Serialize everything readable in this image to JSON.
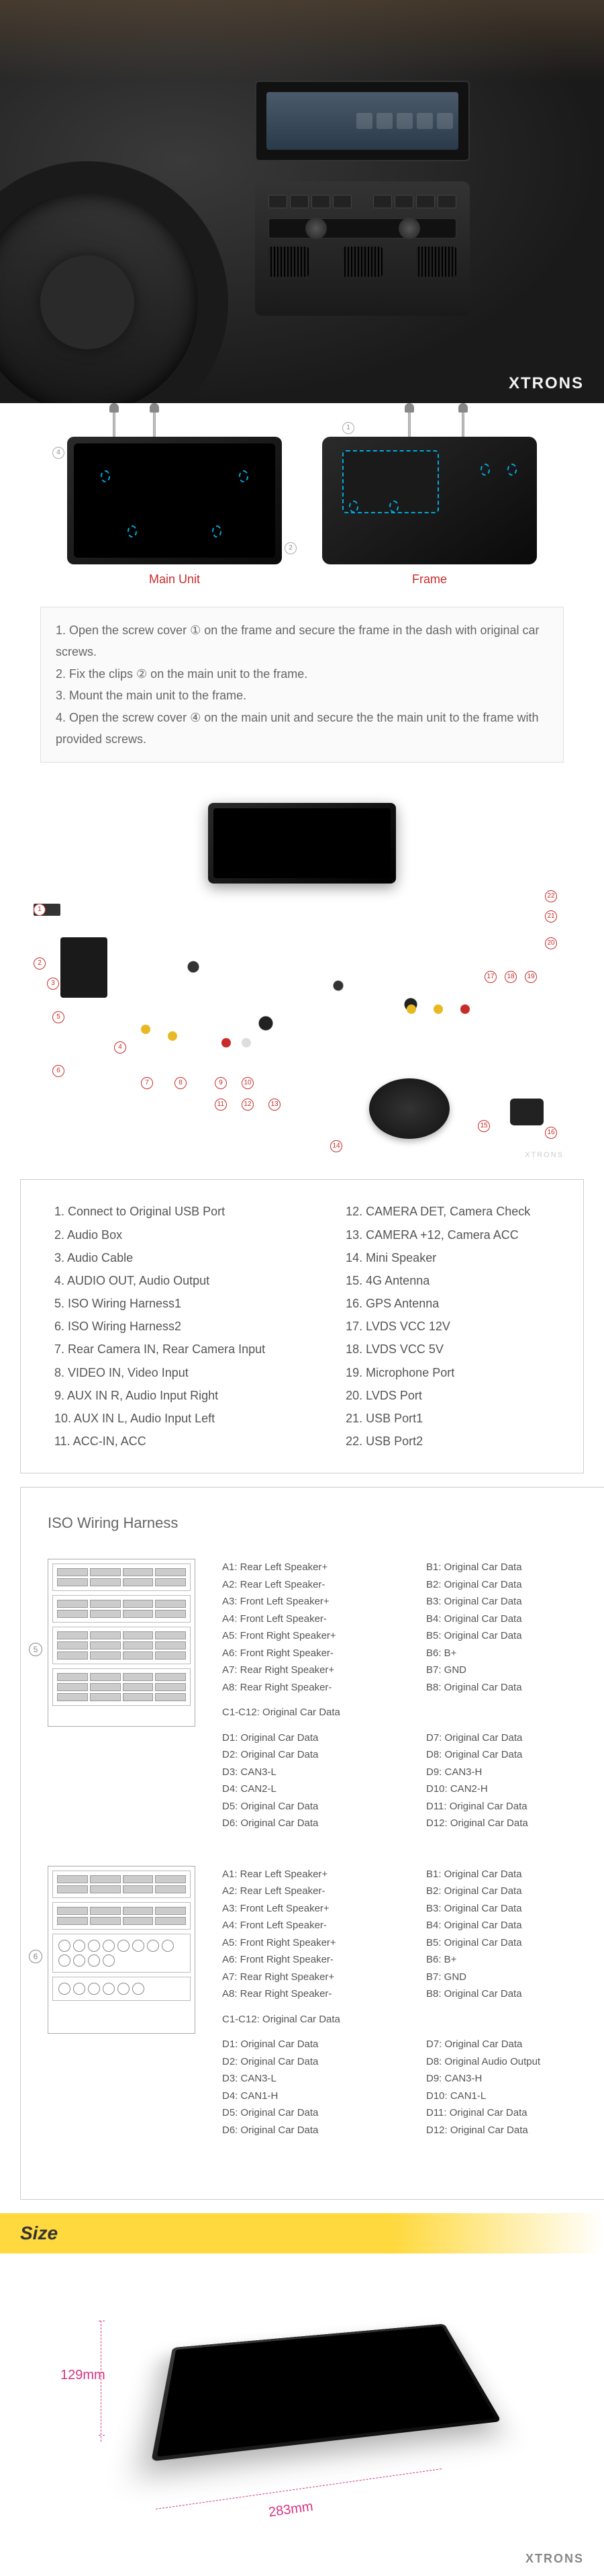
{
  "brand": "XTRONS",
  "install": {
    "main_unit_label": "Main Unit",
    "frame_label": "Frame",
    "steps": [
      "1. Open the screw cover ① on the frame and secure the frame in the dash with original car screws.",
      "2. Fix the clips ② on the main unit to the frame.",
      "3. Mount the main unit to the frame.",
      "4. Open the screw cover ④ on the main unit and secure the the main unit to the frame with provided screws."
    ],
    "callout_1": "1",
    "callout_2": "2",
    "callout_4": "4",
    "step_marker_color": "#888888",
    "label_color": "#c92a2a",
    "clip_dash_color": "#00aadd"
  },
  "accessories": {
    "marker_color": "#c92a2a",
    "left": [
      "1. Connect to Original USB Port",
      "2. Audio Box",
      "3. Audio Cable",
      "4. AUDIO OUT, Audio Output",
      "5. ISO Wiring Harness1",
      "6. ISO Wiring Harness2",
      "7. Rear Camera IN, Rear Camera Input",
      "8. VIDEO IN, Video Input",
      "9. AUX IN R, Audio Input Right",
      "10. AUX IN L, Audio Input Left",
      "11. ACC-IN, ACC"
    ],
    "right": [
      "12. CAMERA DET, Camera Check",
      "13. CAMERA +12, Camera ACC",
      "14. Mini Speaker",
      "15. 4G Antenna",
      "16. GPS Antenna",
      "17. LVDS VCC 12V",
      "18. LVDS VCC 5V",
      "19. Microphone Port",
      "20. LVDS Port",
      "21. USB Port1",
      "22. USB Port2"
    ]
  },
  "iso": {
    "title": "ISO Wiring Harness",
    "harness5": {
      "num": "5",
      "groupA_left": [
        "A1: Rear Left Speaker+",
        "A2: Rear Left Speaker-",
        "A3: Front Left Speaker+",
        "A4: Front Left Speaker-",
        "A5: Front Right Speaker+",
        "A6: Front Right Speaker-",
        "A7: Rear Right Speaker+",
        "A8: Rear Right Speaker-"
      ],
      "groupA_right": [
        "B1: Original Car Data",
        "B2: Original Car Data",
        "B3: Original Car Data",
        "B4: Original Car Data",
        "B5: Original Car Data",
        "B6: B+",
        "B7: GND",
        "B8: Original Car Data"
      ],
      "groupC": "C1-C12: Original Car Data",
      "groupD_left": [
        "D1: Original Car Data",
        "D2: Original Car Data",
        "D3: CAN3-L",
        "D4: CAN2-L",
        "D5: Original Car Data",
        "D6: Original Car Data"
      ],
      "groupD_right": [
        "D7: Original Car Data",
        "D8: Original Car Data",
        "D9: CAN3-H",
        "D10: CAN2-H",
        "D11: Original Car Data",
        "D12: Original Car Data"
      ]
    },
    "harness6": {
      "num": "6",
      "groupA_left": [
        "A1: Rear Left Speaker+",
        "A2: Rear Left Speaker-",
        "A3: Front Left Speaker+",
        "A4: Front Left Speaker-",
        "A5: Front Right Speaker+",
        "A6: Front Right Speaker-",
        "A7: Rear Right Speaker+",
        "A8: Rear Right Speaker-"
      ],
      "groupA_right": [
        "B1: Original Car Data",
        "B2: Original Car Data",
        "B3: Original Car Data",
        "B4: Original Car Data",
        "B5: Original Car Data",
        "B6: B+",
        "B7: GND",
        "B8: Original Car Data"
      ],
      "groupC": "C1-C12: Original Car Data",
      "groupD_left": [
        "D1: Original Car Data",
        "D2: Original Car Data",
        "D3: CAN3-L",
        "D4: CAN1-H",
        "D5: Original Car Data",
        "D6: Original Car Data"
      ],
      "groupD_right": [
        "D7: Original Car Data",
        "D8: Original Audio Output",
        "D9: CAN3-H",
        "D10: CAN1-L",
        "D11: Original Car Data",
        "D12: Original Car Data"
      ]
    }
  },
  "size": {
    "heading": "Size",
    "height": "129mm",
    "width": "283mm",
    "dim_color": "#d63384",
    "header_bg": "#ffd93d"
  },
  "colors": {
    "text_body": "#555555",
    "border": "#cccccc",
    "unit_dark": "#1a1a1a"
  }
}
